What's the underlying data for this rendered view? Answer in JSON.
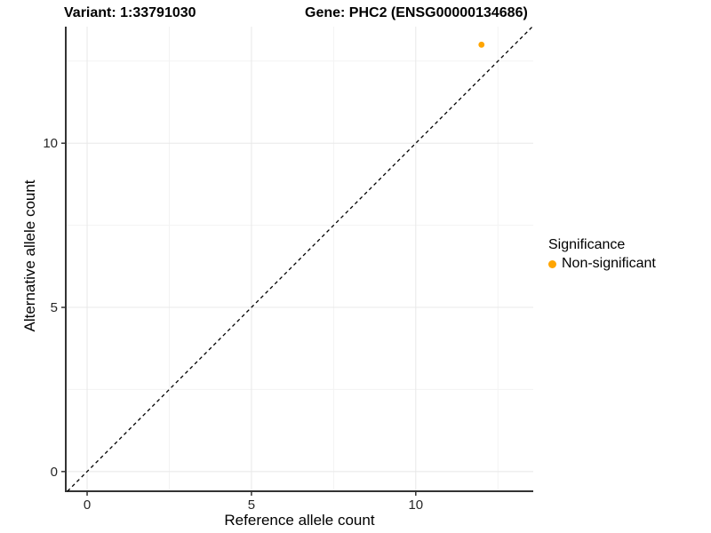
{
  "titles": {
    "variant": "Variant: 1:33791030",
    "gene": "Gene: PHC2 (ENSG00000134686)"
  },
  "legend": {
    "title": "Significance",
    "items": [
      {
        "label": "Non-significant",
        "color": "#FFA500"
      }
    ]
  },
  "chart_data": {
    "type": "scatter",
    "xlabel": "Reference allele count",
    "ylabel": "Alternative allele count",
    "xlim": [
      -0.65,
      13.575
    ],
    "ylim": [
      -0.6,
      13.55
    ],
    "x_ticks": [
      0,
      5,
      10
    ],
    "y_ticks": [
      0,
      5,
      10
    ],
    "x_minor_ticks": [
      2.5,
      7.5,
      12.5
    ],
    "y_minor_ticks": [
      2.5,
      7.5,
      12.5
    ],
    "grid": true,
    "legend_position": "right",
    "series": [
      {
        "name": "Non-significant",
        "color": "#FFA500",
        "points": [
          {
            "x": 12,
            "y": 13
          }
        ]
      }
    ],
    "reference_line": {
      "equation": "y = x",
      "style": "dashed",
      "color": "#000000"
    }
  }
}
